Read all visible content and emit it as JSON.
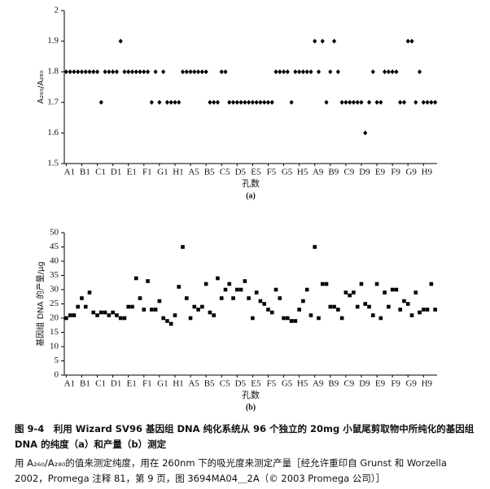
{
  "chart_data": [
    {
      "type": "scatter",
      "marker": "diamond",
      "color": "#000000",
      "ylabel": "A₂₆₀/A₂₈₀",
      "xlabel": "孔数",
      "panel_label": "(a)",
      "categories": [
        "A1",
        null,
        null,
        null,
        "B1",
        null,
        null,
        null,
        "C1",
        null,
        null,
        null,
        "D1",
        null,
        null,
        null,
        "E1",
        null,
        null,
        null,
        "F1",
        null,
        null,
        null,
        "G1",
        null,
        null,
        null,
        "H1",
        null,
        null,
        null,
        "A5",
        null,
        null,
        null,
        "B5",
        null,
        null,
        null,
        "C5",
        null,
        null,
        null,
        "D5",
        null,
        null,
        null,
        "E5",
        null,
        null,
        null,
        "F5",
        null,
        null,
        null,
        "G5",
        null,
        null,
        null,
        "H5",
        null,
        null,
        null,
        "A9",
        null,
        null,
        null,
        "B9",
        null,
        null,
        null,
        "C9",
        null,
        null,
        null,
        "D9",
        null,
        null,
        null,
        "E9",
        null,
        null,
        null,
        "F9",
        null,
        null,
        null,
        "G9",
        null,
        null,
        null,
        "H9",
        null,
        null,
        null
      ],
      "values": [
        1.8,
        1.8,
        1.8,
        1.8,
        1.8,
        1.8,
        1.8,
        1.8,
        1.8,
        1.7,
        1.8,
        1.8,
        1.8,
        1.8,
        1.9,
        1.8,
        1.8,
        1.8,
        1.8,
        1.8,
        1.8,
        1.8,
        1.7,
        1.8,
        1.7,
        1.8,
        1.7,
        1.7,
        1.7,
        1.7,
        1.8,
        1.8,
        1.8,
        1.8,
        1.8,
        1.8,
        1.8,
        1.7,
        1.7,
        1.7,
        1.8,
        1.8,
        1.7,
        1.7,
        1.7,
        1.7,
        1.7,
        1.7,
        1.7,
        1.7,
        1.7,
        1.7,
        1.7,
        1.7,
        1.8,
        1.8,
        1.8,
        1.8,
        1.7,
        1.8,
        1.8,
        1.8,
        1.8,
        1.8,
        1.9,
        1.8,
        1.9,
        1.7,
        1.8,
        1.9,
        1.8,
        1.7,
        1.7,
        1.7,
        1.7,
        1.7,
        1.7,
        1.6,
        1.7,
        1.8,
        1.7,
        1.7,
        1.8,
        1.8,
        1.8,
        1.8,
        1.7,
        1.7,
        1.9,
        1.9,
        1.7,
        1.8,
        1.7,
        1.7,
        1.7,
        1.7
      ],
      "ylim": [
        1.5,
        2
      ],
      "yticks": [
        1.5,
        1.6,
        1.7,
        1.8,
        1.9,
        2
      ]
    },
    {
      "type": "scatter",
      "marker": "square",
      "color": "#000000",
      "ylabel": "基因组 DNA 的产量/μg",
      "xlabel": "孔数",
      "panel_label": "(b)",
      "categories": [
        "A1",
        null,
        null,
        null,
        "B1",
        null,
        null,
        null,
        "C1",
        null,
        null,
        null,
        "D1",
        null,
        null,
        null,
        "E1",
        null,
        null,
        null,
        "F1",
        null,
        null,
        null,
        "G1",
        null,
        null,
        null,
        "H1",
        null,
        null,
        null,
        "A5",
        null,
        null,
        null,
        "B5",
        null,
        null,
        null,
        "C5",
        null,
        null,
        null,
        "D5",
        null,
        null,
        null,
        "E5",
        null,
        null,
        null,
        "F5",
        null,
        null,
        null,
        "G5",
        null,
        null,
        null,
        "H5",
        null,
        null,
        null,
        "A9",
        null,
        null,
        null,
        "B9",
        null,
        null,
        null,
        "C9",
        null,
        null,
        null,
        "D9",
        null,
        null,
        null,
        "E9",
        null,
        null,
        null,
        "F9",
        null,
        null,
        null,
        "G9",
        null,
        null,
        null,
        "H9",
        null,
        null,
        null
      ],
      "values": [
        20,
        21,
        21,
        24,
        27,
        24,
        29,
        22,
        21,
        22,
        22,
        21,
        22,
        21,
        20,
        20,
        24,
        24,
        34,
        27,
        23,
        33,
        23,
        23,
        26,
        20,
        19,
        18,
        21,
        31,
        45,
        27,
        20,
        24,
        23,
        24,
        32,
        22,
        21,
        34,
        27,
        30,
        32,
        27,
        30,
        30,
        33,
        27,
        20,
        29,
        26,
        25,
        23,
        22,
        30,
        27,
        20,
        20,
        19,
        19,
        23,
        26,
        30,
        21,
        45,
        20,
        32,
        32,
        24,
        24,
        23,
        20,
        29,
        28,
        29,
        24,
        32,
        25,
        24,
        21,
        32,
        20,
        29,
        24,
        30,
        30,
        23,
        26,
        25,
        21,
        29,
        22,
        23,
        23,
        32,
        23
      ],
      "ylim": [
        0,
        50
      ],
      "yticks": [
        0,
        5,
        10,
        15,
        20,
        25,
        30,
        35,
        40,
        45,
        50
      ]
    }
  ],
  "figure_caption": {
    "title": "图 9-4　利用 Wizard SV96 基因组 DNA 纯化系统从 96 个独立的 20mg 小鼠尾剪取物中所纯化的基因组 DNA 的纯度（a）和产量（b）测定",
    "note": "用 A₂₆₀/A₂₈₀的值来测定纯度，用在 260nm 下的吸光度来测定产量［经允许重印自 Grunst 和 Worzella 2002，Promega 注释 81，第 9 页，图 3694MA04＿2A（© 2003 Promega 公司）］"
  }
}
